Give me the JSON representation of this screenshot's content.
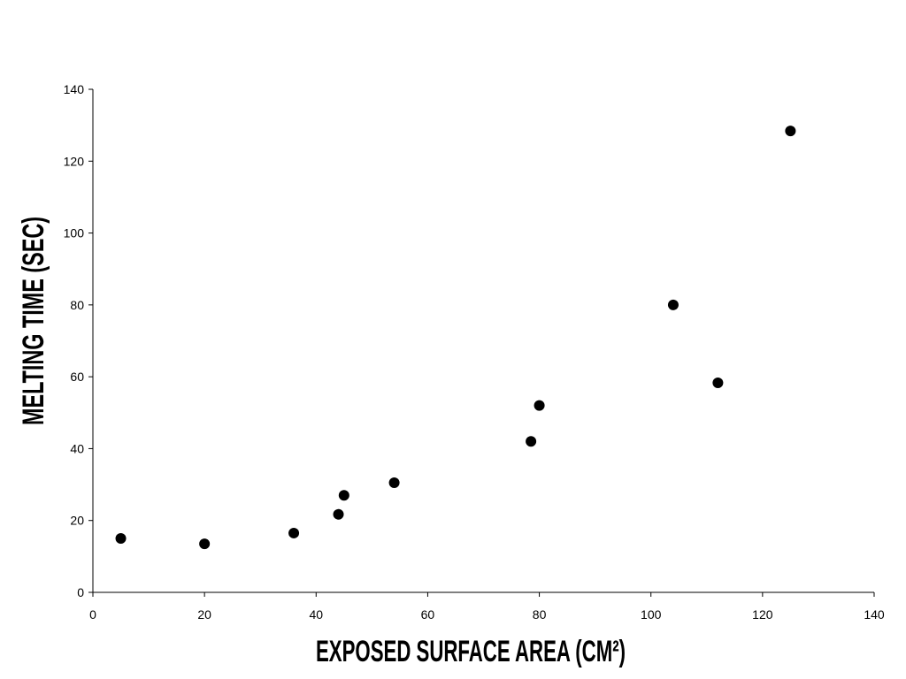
{
  "chart_data": {
    "type": "scatter",
    "x_label": "EXPOSED SURFACE AREA (CM²)",
    "y_label": "MELTING TIME (SEC)",
    "x": [
      5,
      20,
      36,
      44,
      45,
      54,
      78.5,
      80,
      104,
      112,
      125
    ],
    "values": [
      15,
      13.5,
      16.5,
      21.7,
      27,
      30.5,
      42,
      52,
      80,
      58.3,
      128.4
    ],
    "color": "#000000",
    "xlim": [
      0,
      140
    ],
    "xticks": [
      0,
      20,
      40,
      60,
      80,
      100,
      120,
      140
    ],
    "ylim": [
      0,
      140
    ],
    "yticks": [
      0,
      20,
      40,
      60,
      80,
      100,
      120,
      140
    ],
    "grid": false
  }
}
